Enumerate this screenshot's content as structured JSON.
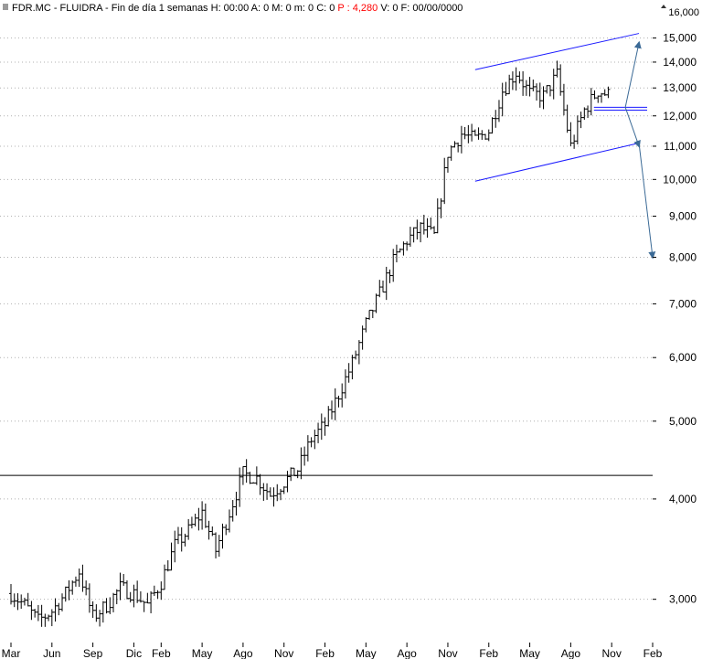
{
  "header": {
    "symbol": "FDR.MC - FLUIDRA - Fin de día 1 semanas",
    "fields": [
      {
        "label": "H:",
        "value": "00:00"
      },
      {
        "label": "A:",
        "value": "0"
      },
      {
        "label": "M:",
        "value": "0"
      },
      {
        "label": "m:",
        "value": "0"
      },
      {
        "label": "C:",
        "value": "0"
      },
      {
        "label": "P :",
        "value": "4,280",
        "color": "#ff0000"
      },
      {
        "label": "V:",
        "value": "0"
      },
      {
        "label": "F:",
        "value": "00/00/0000"
      }
    ],
    "corner_value": "16,000"
  },
  "chart_data": {
    "type": "ohlc",
    "title": "",
    "y_scale": "log",
    "ylim": [
      2650,
      16000
    ],
    "y_ticks": [
      3000,
      4000,
      5000,
      6000,
      7000,
      8000,
      9000,
      10000,
      11000,
      12000,
      13000,
      14000,
      15000
    ],
    "y_tick_labels": [
      "3,000",
      "4,000",
      "5,000",
      "6,000",
      "7,000",
      "8,000",
      "9,000",
      "10,000",
      "11,000",
      "12,000",
      "13,000",
      "14,000",
      "15,000"
    ],
    "x_labels": [
      "Mar",
      "Jun",
      "Sep",
      "Dic",
      "Feb",
      "May",
      "Ago",
      "Nov",
      "Feb",
      "May",
      "Ago",
      "Nov",
      "Feb",
      "May",
      "Ago",
      "Nov",
      "Feb"
    ],
    "x_label_periods": [
      "2019-03",
      "2019-06",
      "2019-09",
      "2019-12",
      "2020-02",
      "2020-05",
      "2020-08",
      "2020-11",
      "2021-02",
      "2021-05",
      "2021-08",
      "2021-11",
      "2022-02",
      "2022-05",
      "2022-08",
      "2022-11",
      "2023-02"
    ],
    "close_series": [
      [
        "2019-03",
        3050
      ],
      [
        "2019-04",
        2950
      ],
      [
        "2019-05",
        2820
      ],
      [
        "2019-06",
        2900
      ],
      [
        "2019-07",
        3050
      ],
      [
        "2019-08",
        3250
      ],
      [
        "2019-09",
        2850
      ],
      [
        "2019-10",
        2950
      ],
      [
        "2019-11",
        3100
      ],
      [
        "2019-12",
        3050
      ],
      [
        "2020-01",
        2950
      ],
      [
        "2020-02",
        3150
      ],
      [
        "2020-03",
        3500
      ],
      [
        "2020-04",
        3650
      ],
      [
        "2020-05",
        3850
      ],
      [
        "2020-06",
        3450
      ],
      [
        "2020-07",
        3850
      ],
      [
        "2020-08",
        4300
      ],
      [
        "2020-09",
        4250
      ],
      [
        "2020-10",
        4050
      ],
      [
        "2020-11",
        4200
      ],
      [
        "2020-12",
        4350
      ],
      [
        "2021-01",
        4750
      ],
      [
        "2021-02",
        4950
      ],
      [
        "2021-03",
        5400
      ],
      [
        "2021-04",
        5900
      ],
      [
        "2021-05",
        6600
      ],
      [
        "2021-06",
        7200
      ],
      [
        "2021-07",
        7900
      ],
      [
        "2021-08",
        8400
      ],
      [
        "2021-09",
        8700
      ],
      [
        "2021-10",
        8500
      ],
      [
        "2021-11",
        10800
      ],
      [
        "2021-12",
        11400
      ],
      [
        "2022-01",
        11200
      ],
      [
        "2022-02",
        11500
      ],
      [
        "2022-03",
        12900
      ],
      [
        "2022-04",
        13600
      ],
      [
        "2022-05",
        12800
      ],
      [
        "2022-06",
        12700
      ],
      [
        "2022-07",
        13500
      ],
      [
        "2022-08",
        11000
      ],
      [
        "2022-09",
        12200
      ],
      [
        "2022-10",
        12900
      ],
      [
        "2022-11",
        12700
      ]
    ],
    "horizontal_lines": [
      4280,
      12200,
      12300
    ],
    "channel": {
      "upper": [
        [
          "2022-01",
          13700
        ],
        [
          "2023-01",
          15200
        ]
      ],
      "lower": [
        [
          "2022-01",
          9950
        ],
        [
          "2023-01",
          11100
        ]
      ]
    },
    "arrows": [
      {
        "from": [
          "2022-12",
          12300
        ],
        "to": [
          "2023-01",
          14800
        ]
      },
      {
        "from": [
          "2022-12",
          12300
        ],
        "to": [
          "2023-01",
          11000
        ]
      },
      {
        "from": [
          "2023-01",
          11100
        ],
        "to": [
          "2023-02",
          8000
        ]
      }
    ],
    "colors": {
      "bars": "#000000",
      "channel": "#1a1aff",
      "arrows": "#3b6a96",
      "hline": "#000000",
      "support": "#1a1aff",
      "grid": "#b0b0b0"
    },
    "grid": true,
    "grid_style": "dotted-horizontal"
  }
}
